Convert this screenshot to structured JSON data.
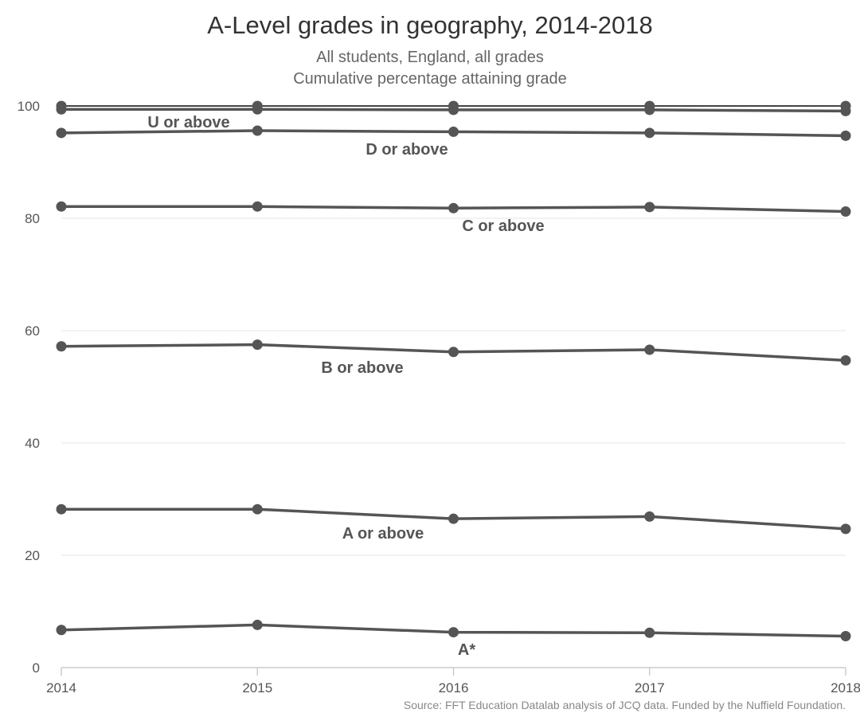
{
  "chart_data": {
    "type": "line",
    "title": "A-Level grades in geography, 2014-2018",
    "subtitle_lines": [
      "All students, England, all grades",
      "Cumulative percentage attaining grade"
    ],
    "source": "Source: FFT Education Datalab analysis of JCQ data. Funded by the Nuffield Foundation.",
    "x": [
      "2014",
      "2015",
      "2016",
      "2017",
      "2018"
    ],
    "xlabel": "",
    "ylabel": "",
    "ylim": [
      0,
      100
    ],
    "yticks": [
      0,
      20,
      40,
      60,
      80,
      100
    ],
    "grid": true,
    "series": [
      {
        "name": "A*",
        "values": [
          6.7,
          7.6,
          6.3,
          6.2,
          5.6
        ]
      },
      {
        "name": "A or above",
        "values": [
          28.2,
          28.2,
          26.5,
          26.9,
          24.7
        ]
      },
      {
        "name": "B or above",
        "values": [
          57.2,
          57.5,
          56.2,
          56.6,
          54.7
        ]
      },
      {
        "name": "C or above",
        "values": [
          82.1,
          82.1,
          81.8,
          82.0,
          81.2
        ]
      },
      {
        "name": "D or above",
        "values": [
          95.2,
          95.6,
          95.4,
          95.2,
          94.7
        ]
      },
      {
        "name": "",
        "values": [
          99.4,
          99.4,
          99.3,
          99.3,
          99.1
        ]
      },
      {
        "name": "U or above",
        "values": [
          100,
          100,
          100,
          100,
          100
        ]
      }
    ],
    "colors": {
      "line": "#555555",
      "grid": "#e5e5e5",
      "axis": "#cccccc",
      "tick_text": "#555555"
    }
  }
}
